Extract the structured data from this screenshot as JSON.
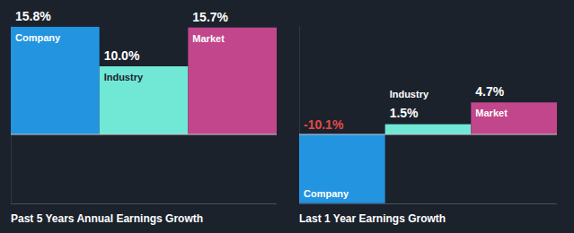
{
  "chart_data": [
    {
      "type": "bar",
      "title": "Past 5 Years Annual Earnings Growth",
      "categories": [
        "Company",
        "Industry",
        "Market"
      ],
      "values": [
        15.8,
        10.0,
        15.7
      ],
      "value_labels": [
        "15.8%",
        "10.0%",
        "15.7%"
      ],
      "colors": [
        "#2394df",
        "#71e7d6",
        "#c2468b"
      ],
      "ylim": [
        -10.2,
        16
      ],
      "yticks": [
        0
      ],
      "data_labels": true,
      "tick_labels": false,
      "grid": false
    },
    {
      "type": "bar",
      "title": "Last 1 Year Earnings Growth",
      "categories": [
        "Company",
        "Industry",
        "Market"
      ],
      "values": [
        -10.1,
        1.5,
        4.7
      ],
      "value_labels": [
        "-10.1%",
        "1.5%",
        "4.7%"
      ],
      "colors": [
        "#2394df",
        "#71e7d6",
        "#c2468b"
      ],
      "ylim": [
        -10.2,
        16
      ],
      "yticks": [
        0
      ],
      "data_labels": true,
      "tick_labels": false,
      "grid": false
    }
  ]
}
